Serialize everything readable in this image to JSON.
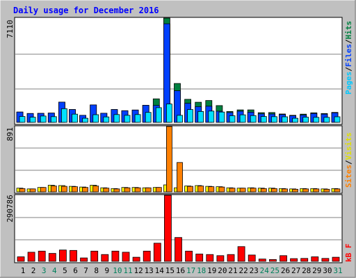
{
  "window": {
    "title": "Daily usage for December 2016"
  },
  "colors": {
    "background": "#c0c0c0",
    "plot_bg": "#ffffff",
    "title": "#0000ff",
    "hits": "#008040",
    "files": "#0040ff",
    "pages": "#00e0ff",
    "visits": "#ffff00",
    "sites": "#ff8000",
    "kbf": "#ff0000",
    "weekday_label": "#000000",
    "weekend_label": "#00805c"
  },
  "chart_data": [
    {
      "type": "bar",
      "panel": "hits-files-pages",
      "max_label": "7110",
      "ylim": [
        0,
        7110
      ],
      "legend": [
        "Pages",
        "/",
        "Files",
        "/",
        "Hits"
      ],
      "categories": [
        "1",
        "2",
        "3",
        "4",
        "5",
        "6",
        "7",
        "8",
        "9",
        "10",
        "11",
        "12",
        "13",
        "14",
        "15",
        "16",
        "17",
        "18",
        "19",
        "20",
        "21",
        "22",
        "23",
        "24",
        "25",
        "26",
        "27",
        "28",
        "29",
        "30",
        "31"
      ],
      "series": [
        {
          "name": "Hits",
          "values": [
            700,
            600,
            610,
            630,
            1380,
            870,
            480,
            1190,
            620,
            870,
            790,
            840,
            1160,
            1600,
            7110,
            2650,
            1570,
            1370,
            1490,
            1140,
            740,
            850,
            850,
            660,
            670,
            570,
            480,
            560,
            650,
            600,
            680
          ]
        },
        {
          "name": "Files",
          "values": [
            700,
            600,
            610,
            630,
            1380,
            870,
            480,
            1190,
            620,
            870,
            790,
            840,
            1160,
            1150,
            6720,
            2150,
            1300,
            1070,
            1100,
            760,
            670,
            760,
            690,
            580,
            570,
            530,
            450,
            500,
            600,
            560,
            650
          ]
        },
        {
          "name": "Pages",
          "values": [
            400,
            350,
            430,
            390,
            930,
            560,
            280,
            520,
            370,
            530,
            480,
            530,
            680,
            1000,
            1250,
            480,
            870,
            740,
            770,
            700,
            450,
            510,
            460,
            400,
            390,
            380,
            280,
            350,
            340,
            340,
            380
          ]
        }
      ]
    },
    {
      "type": "bar",
      "panel": "visits-sites",
      "max_label": "891",
      "ylim": [
        0,
        891
      ],
      "legend": [
        "Sites",
        "/",
        "Visits"
      ],
      "categories": [
        "1",
        "2",
        "3",
        "4",
        "5",
        "6",
        "7",
        "8",
        "9",
        "10",
        "11",
        "12",
        "13",
        "14",
        "15",
        "16",
        "17",
        "18",
        "19",
        "20",
        "21",
        "22",
        "23",
        "24",
        "25",
        "26",
        "27",
        "28",
        "29",
        "30",
        "31"
      ],
      "series": [
        {
          "name": "Visits",
          "values": [
            50,
            40,
            60,
            90,
            85,
            75,
            65,
            90,
            55,
            45,
            60,
            60,
            55,
            60,
            95,
            55,
            80,
            85,
            75,
            70,
            55,
            50,
            55,
            50,
            50,
            45,
            40,
            45,
            45,
            40,
            45
          ]
        },
        {
          "name": "Sites",
          "values": [
            45,
            40,
            60,
            80,
            75,
            70,
            60,
            80,
            50,
            40,
            55,
            55,
            55,
            60,
            891,
            400,
            75,
            80,
            70,
            65,
            50,
            50,
            50,
            45,
            45,
            40,
            35,
            40,
            40,
            35,
            40
          ]
        }
      ]
    },
    {
      "type": "bar",
      "panel": "kb-f",
      "max_label": "290786",
      "ylim": [
        0,
        290786
      ],
      "legend": [
        "kB F"
      ],
      "categories": [
        "1",
        "2",
        "3",
        "4",
        "5",
        "6",
        "7",
        "8",
        "9",
        "10",
        "11",
        "12",
        "13",
        "14",
        "15",
        "16",
        "17",
        "18",
        "19",
        "20",
        "21",
        "22",
        "23",
        "24",
        "25",
        "26",
        "27",
        "28",
        "29",
        "30",
        "31"
      ],
      "series": [
        {
          "name": "kB F",
          "values": [
            20000,
            40000,
            45000,
            35000,
            50000,
            48000,
            15000,
            45000,
            30000,
            45000,
            40000,
            18000,
            45000,
            80000,
            290786,
            105000,
            45000,
            32000,
            30000,
            25000,
            30000,
            65000,
            28000,
            10000,
            8000,
            25000,
            12000,
            13000,
            20000,
            13000,
            18000
          ]
        }
      ]
    }
  ],
  "x_axis": {
    "labels": [
      "1",
      "2",
      "3",
      "4",
      "5",
      "6",
      "7",
      "8",
      "9",
      "10",
      "11",
      "12",
      "13",
      "14",
      "15",
      "16",
      "17",
      "18",
      "19",
      "20",
      "21",
      "22",
      "23",
      "24",
      "25",
      "26",
      "27",
      "28",
      "29",
      "30",
      "31"
    ],
    "weekend_days": [
      "3",
      "4",
      "10",
      "11",
      "17",
      "18",
      "24",
      "25",
      "31"
    ]
  }
}
